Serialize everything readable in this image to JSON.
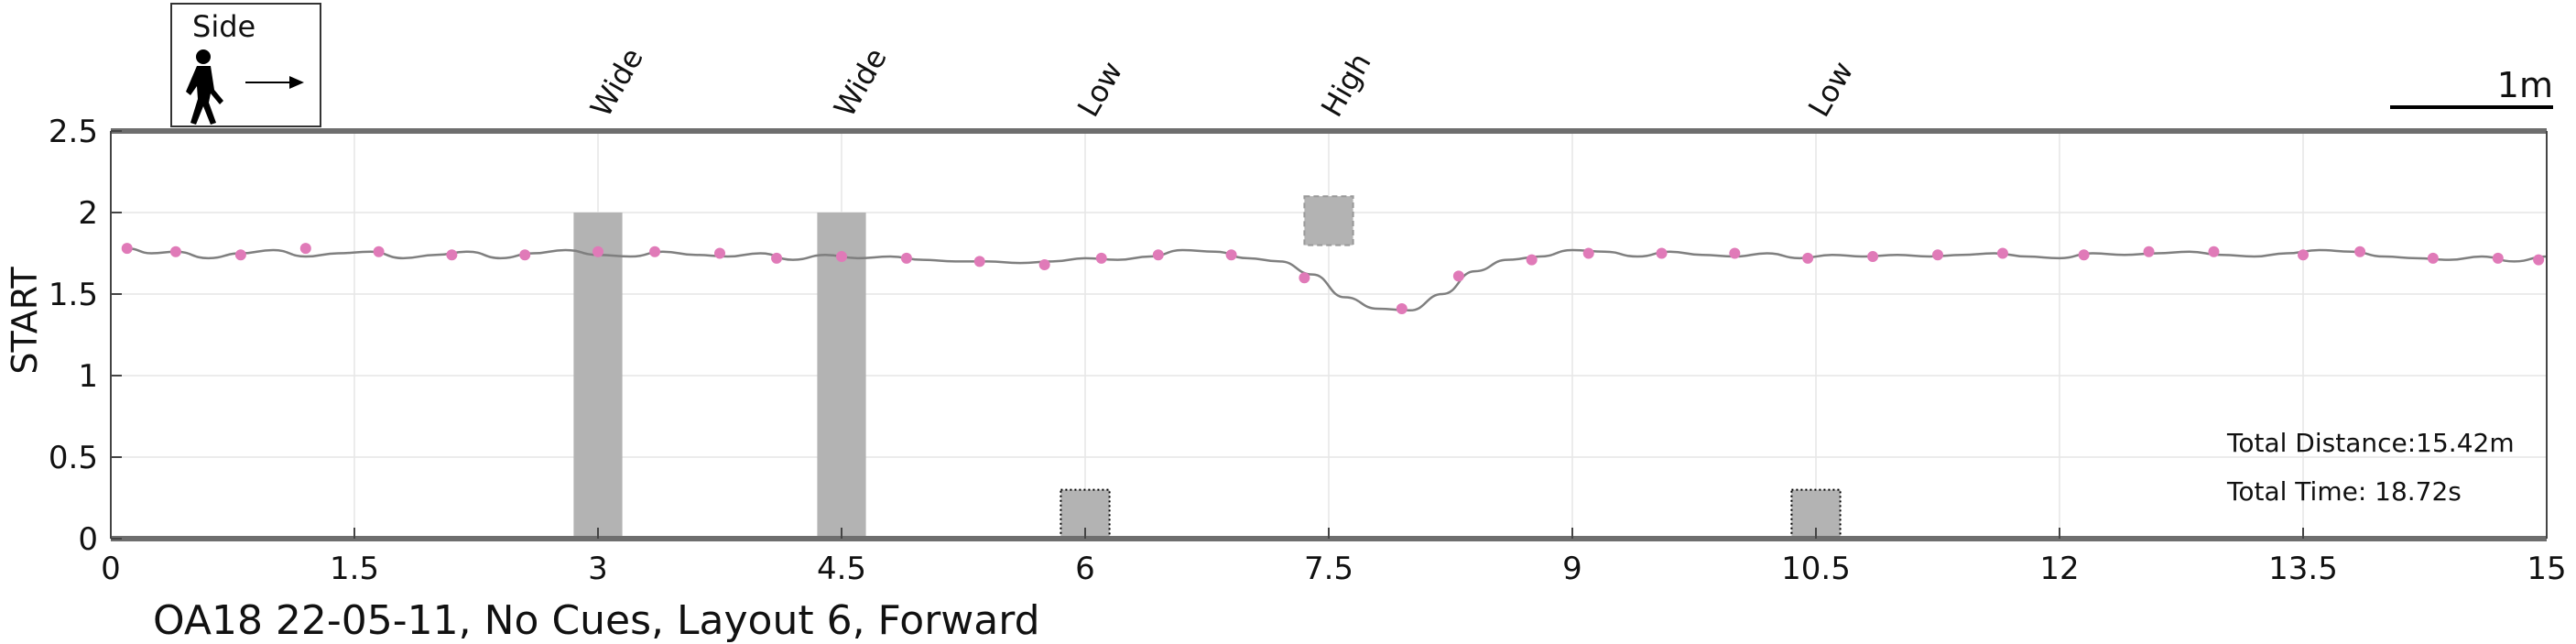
{
  "chart_data": {
    "type": "line",
    "ylabel": "START",
    "xlim": [
      0,
      15
    ],
    "ylim": [
      0,
      2.5
    ],
    "x_ticks": [
      0,
      1.5,
      3,
      4.5,
      6,
      7.5,
      9,
      10.5,
      12,
      13.5,
      15
    ],
    "x_tick_labels": [
      "0",
      "1.5",
      "3",
      "4.5",
      "6",
      "7.5",
      "9",
      "10.5",
      "12",
      "13.5",
      "15"
    ],
    "y_ticks": [
      0,
      0.5,
      1,
      1.5,
      2,
      2.5
    ],
    "y_tick_labels": [
      "0",
      "0.5",
      "1",
      "1.5",
      "2",
      "2.5"
    ],
    "grid": true,
    "colors": {
      "trace": "#7f7f7f",
      "marker": "#e07ab8",
      "obstacle": "#b3b3b3",
      "axis": "#6e6e6e"
    },
    "obstacles": [
      {
        "label": "Wide",
        "x": 3.0,
        "width": 0.3,
        "y0": 0,
        "y1": 2.0,
        "style": "solid"
      },
      {
        "label": "Wide",
        "x": 4.5,
        "width": 0.3,
        "y0": 0,
        "y1": 2.0,
        "style": "solid"
      },
      {
        "label": "Low",
        "x": 6.0,
        "width": 0.3,
        "y0": 0,
        "y1": 0.3,
        "style": "dotted"
      },
      {
        "label": "High",
        "x": 7.5,
        "width": 0.3,
        "y0": 1.8,
        "y1": 2.1,
        "style": "dashed"
      },
      {
        "label": "Low",
        "x": 10.5,
        "width": 0.3,
        "y0": 0,
        "y1": 0.3,
        "style": "dotted"
      }
    ],
    "trajectory": {
      "x": [
        0.1,
        0.25,
        0.4,
        0.6,
        0.8,
        1.0,
        1.2,
        1.4,
        1.6,
        1.8,
        2.0,
        2.2,
        2.4,
        2.6,
        2.8,
        3.0,
        3.2,
        3.4,
        3.6,
        3.8,
        4.0,
        4.2,
        4.4,
        4.6,
        4.8,
        5.0,
        5.2,
        5.4,
        5.6,
        5.8,
        6.0,
        6.2,
        6.4,
        6.6,
        6.8,
        7.0,
        7.2,
        7.4,
        7.6,
        7.8,
        8.0,
        8.2,
        8.4,
        8.6,
        8.8,
        9.0,
        9.2,
        9.4,
        9.6,
        9.8,
        10.0,
        10.2,
        10.4,
        10.6,
        10.8,
        11.0,
        11.2,
        11.4,
        11.6,
        11.8,
        12.0,
        12.2,
        12.4,
        12.6,
        12.8,
        13.0,
        13.2,
        13.4,
        13.6,
        13.8,
        14.0,
        14.2,
        14.4,
        14.6,
        14.8,
        15.0
      ],
      "y": [
        1.78,
        1.75,
        1.76,
        1.72,
        1.75,
        1.77,
        1.73,
        1.75,
        1.76,
        1.72,
        1.74,
        1.76,
        1.72,
        1.75,
        1.77,
        1.74,
        1.73,
        1.76,
        1.74,
        1.73,
        1.75,
        1.71,
        1.74,
        1.72,
        1.73,
        1.71,
        1.7,
        1.7,
        1.69,
        1.7,
        1.72,
        1.71,
        1.73,
        1.77,
        1.76,
        1.72,
        1.7,
        1.62,
        1.48,
        1.41,
        1.4,
        1.5,
        1.64,
        1.71,
        1.73,
        1.77,
        1.76,
        1.73,
        1.76,
        1.74,
        1.73,
        1.75,
        1.72,
        1.74,
        1.73,
        1.74,
        1.73,
        1.74,
        1.75,
        1.73,
        1.72,
        1.75,
        1.74,
        1.75,
        1.76,
        1.74,
        1.73,
        1.75,
        1.77,
        1.76,
        1.73,
        1.72,
        1.71,
        1.73,
        1.7,
        1.73
      ]
    },
    "markers": {
      "x": [
        0.1,
        0.4,
        0.8,
        1.2,
        1.65,
        2.1,
        2.55,
        3.0,
        3.35,
        3.75,
        4.1,
        4.5,
        4.9,
        5.35,
        5.75,
        6.1,
        6.45,
        6.9,
        7.35,
        7.95,
        8.3,
        8.75,
        9.1,
        9.55,
        10.0,
        10.45,
        10.85,
        11.25,
        11.65,
        12.15,
        12.55,
        12.95,
        13.5,
        13.85,
        14.3,
        14.7,
        14.95
      ],
      "y": [
        1.78,
        1.76,
        1.74,
        1.78,
        1.76,
        1.74,
        1.74,
        1.76,
        1.76,
        1.75,
        1.72,
        1.73,
        1.72,
        1.7,
        1.68,
        1.72,
        1.74,
        1.74,
        1.6,
        1.41,
        1.61,
        1.71,
        1.75,
        1.75,
        1.75,
        1.72,
        1.73,
        1.74,
        1.75,
        1.74,
        1.76,
        1.76,
        1.74,
        1.76,
        1.72,
        1.72,
        1.71
      ]
    },
    "annotations": {
      "total_distance": "Total Distance:15.42m",
      "total_time": "Total Time: 18.72s",
      "scale_label": "1m",
      "legend_label": "Side",
      "footer": "OA18 22-05-11, No Cues, Layout 6, Forward"
    }
  }
}
